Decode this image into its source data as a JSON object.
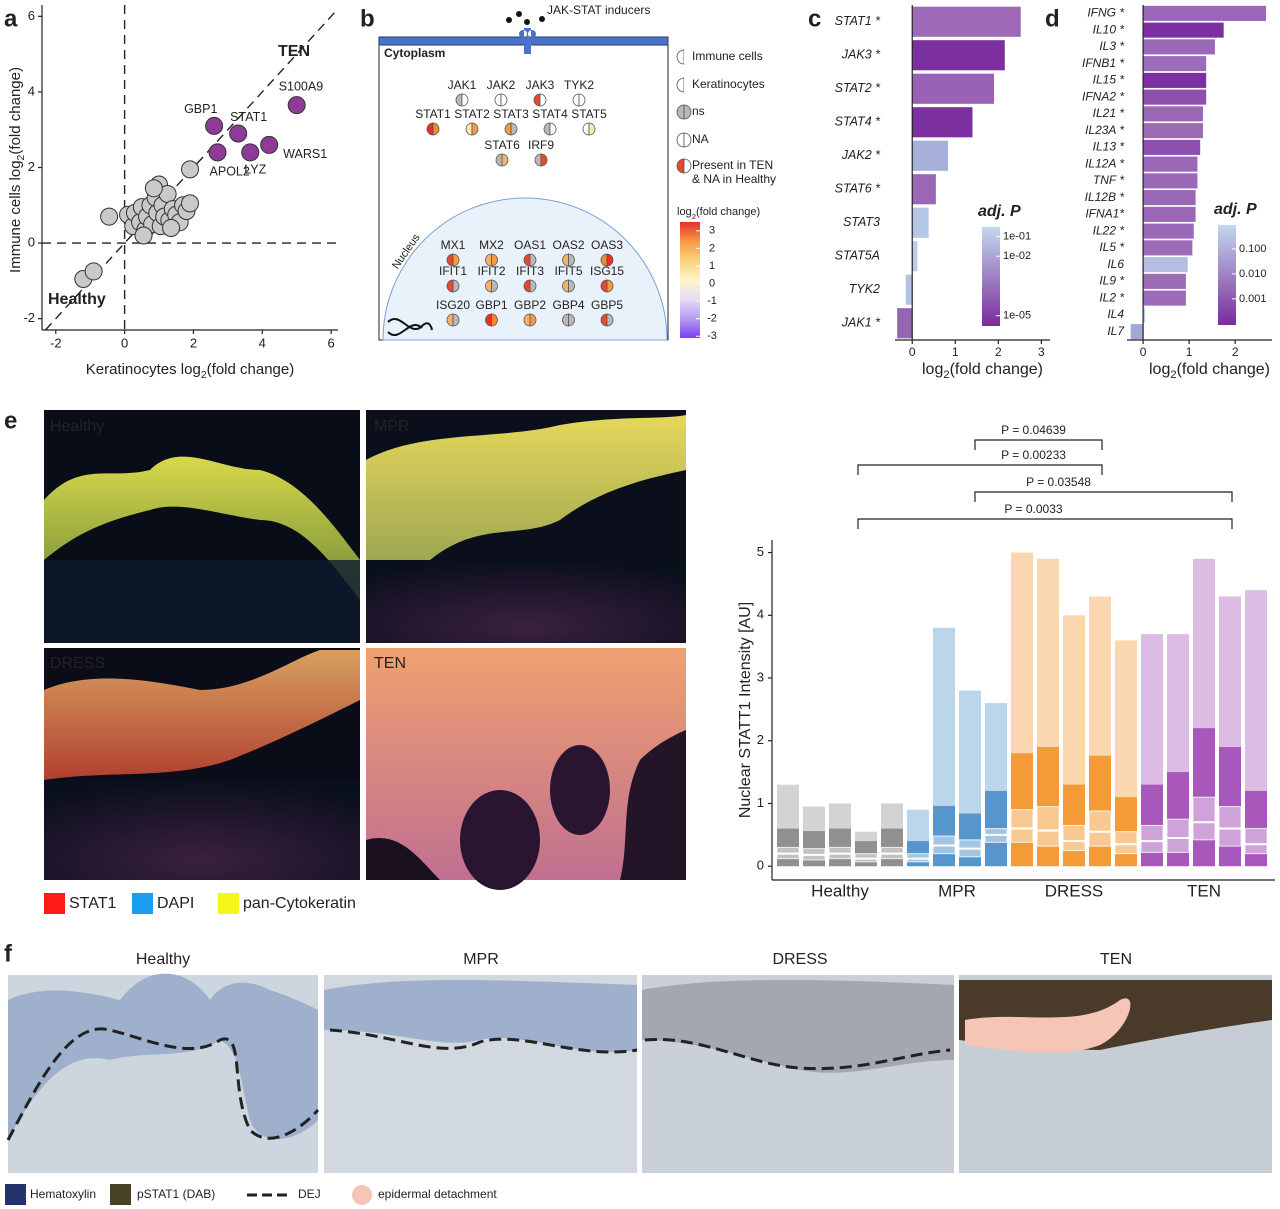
{
  "panel_letters": [
    "a",
    "b",
    "c",
    "d",
    "e",
    "f"
  ],
  "chart_data": [
    {
      "type": "scatter",
      "xlabel": [
        "Keratinocytes log",
        "2",
        "(fold change)"
      ],
      "ylabel": [
        "Immune cells log",
        "2",
        "(fold change)"
      ],
      "xlim": [
        -2.4,
        6.2
      ],
      "ylim": [
        -2.3,
        6.3
      ],
      "xticks": [
        -2,
        0,
        2,
        4,
        6
      ],
      "yticks": [
        -2,
        0,
        2,
        4,
        6
      ],
      "annotations": [
        "TEN",
        "Healthy"
      ],
      "series": [
        {
          "color": "#c9c9c9",
          "x": [
            -1.2,
            -0.9,
            -0.45,
            0.1,
            0.25,
            0.3,
            0.45,
            0.5,
            0.6,
            0.65,
            0.75,
            0.8,
            0.9,
            0.95,
            1.0,
            1.05,
            1.1,
            1.15,
            1.25,
            1.3,
            1.4,
            1.5,
            1.6,
            1.7,
            1.8,
            1.9,
            1.9,
            1.35,
            0.55,
            0.85
          ],
          "y": [
            -0.95,
            -0.75,
            0.7,
            0.75,
            0.45,
            0.8,
            0.55,
            0.95,
            0.35,
            0.7,
            1.0,
            0.5,
            1.2,
            0.8,
            1.55,
            0.45,
            1.0,
            0.7,
            1.3,
            0.6,
            0.9,
            0.75,
            0.55,
            1.0,
            0.85,
            1.05,
            1.95,
            0.4,
            0.2,
            1.45
          ]
        },
        {
          "color": "#8e3a96",
          "x": [
            2.6,
            3.3,
            2.7,
            3.65,
            4.2,
            5.0
          ],
          "y": [
            3.1,
            2.9,
            2.4,
            2.4,
            2.6,
            3.65
          ],
          "point_labels": [
            "GBP1",
            "STAT1",
            "APOL2",
            "LYZ",
            "WARS1",
            "S100A9"
          ]
        }
      ]
    },
    {
      "type": "hbar",
      "categories": [
        "STAT1 *",
        "JAK3 *",
        "STAT2 *",
        "STAT4 *",
        "JAK2 *",
        "STAT6 *",
        "STAT3",
        "STAT5A",
        "TYK2",
        "JAK1 *"
      ],
      "values": [
        2.52,
        2.15,
        1.9,
        1.4,
        0.83,
        0.55,
        0.38,
        0.12,
        -0.15,
        -0.35
      ],
      "colors": [
        "#9e6ab8",
        "#7c2f9e",
        "#9a62b6",
        "#7d31a0",
        "#a7b0d8",
        "#9a67b6",
        "#b4c7e4",
        "#b9cfe9",
        "#b3c4e2",
        "#9466b2"
      ],
      "label_colors": [
        "#222",
        "#222",
        "#222",
        "#222",
        "#222",
        "#222",
        "#222",
        "#222",
        "#222",
        "#222"
      ],
      "xlim": [
        -0.4,
        3.2
      ],
      "xticks": [
        0,
        1,
        2,
        3
      ],
      "xlabel": [
        "log",
        "2",
        "(fold change)"
      ],
      "colorbar": {
        "title": "adj. P",
        "lim": [
          3e-06,
          0.3
        ],
        "log": true,
        "colors": [
          "#7b2b9a",
          "#c2d8ef"
        ],
        "ticks": [
          {
            "value": 0.1,
            "label": "1e-01"
          },
          {
            "value": 0.01,
            "label": "1e-02"
          },
          {
            "value": 1e-05,
            "label": "1e-05"
          }
        ]
      }
    },
    {
      "type": "hbar",
      "categories": [
        "IFNG *",
        "IL10 *",
        "IL3 *",
        "IFNB1 *",
        "IL15 *",
        "IFNA2 *",
        "IL21 *",
        "IL23A *",
        "IL13 *",
        "IL12A *",
        "TNF *",
        "IL12B *",
        "IFNA1*",
        "IL22 *",
        "IL5 *",
        "IL6",
        "IL9 *",
        "IL2 *",
        "IL4",
        "IL7"
      ],
      "values": [
        2.67,
        1.75,
        1.56,
        1.37,
        1.37,
        1.37,
        1.3,
        1.3,
        1.24,
        1.18,
        1.18,
        1.14,
        1.14,
        1.1,
        1.07,
        0.97,
        0.93,
        0.93,
        0.04,
        -0.27
      ],
      "colors": [
        "#9b66b7",
        "#7d2f9f",
        "#9b68b8",
        "#9b6cb9",
        "#7d31a0",
        "#8e4fae",
        "#9a66b6",
        "#9b6bb8",
        "#8e4fae",
        "#9a66b6",
        "#9b68b8",
        "#9a66b6",
        "#9a66b6",
        "#9a69b7",
        "#9c6cb9",
        "#b3bee2",
        "#9c6cb9",
        "#9c6cb9",
        "#b8cfe9",
        "#a1a9d8"
      ],
      "label_colors": [
        "#222",
        "#222",
        "#222",
        "#222",
        "#222",
        "#222",
        "#222",
        "#222",
        "#222",
        "#222",
        "#e0302b",
        "#222",
        "#222",
        "#222",
        "#222",
        "#222",
        "#222",
        "#222",
        "#222",
        "#222"
      ],
      "xlim": [
        -0.35,
        2.8
      ],
      "xticks": [
        0,
        1,
        2
      ],
      "xlabel": [
        "log",
        "2",
        "(fold change)"
      ],
      "colorbar": {
        "title": "adj. P",
        "lim": [
          9e-05,
          0.9
        ],
        "log": true,
        "colors": [
          "#7b2b9a",
          "#c2d8ef"
        ],
        "ticks": [
          {
            "value": 0.1,
            "label": "0.100"
          },
          {
            "value": 0.01,
            "label": "0.010"
          },
          {
            "value": 0.001,
            "label": "0.001"
          }
        ]
      }
    },
    {
      "type": "box",
      "ylabel": "Nuclear STATT1 Intensity [AU]",
      "ylim": [
        -0.22,
        5.2
      ],
      "yticks": [
        0,
        1,
        2,
        3,
        4,
        5
      ],
      "comparisons": [
        "P = 0.04639",
        "P = 0.00233",
        "P = 0.03548",
        "P = 0.0033"
      ],
      "series": [
        {
          "name": "Healthy",
          "color": "#808080",
          "q1": [
            0.12,
            0.1,
            0.12,
            0.07,
            0.12
          ],
          "median": [
            0.2,
            0.18,
            0.2,
            0.12,
            0.2
          ],
          "q3": [
            0.3,
            0.28,
            0.3,
            0.2,
            0.3
          ],
          "max": [
            1.3,
            0.95,
            1.0,
            0.55,
            1.0
          ]
        },
        {
          "name": "MPR",
          "color": "#3d86c6",
          "q1": [
            0.07,
            0.2,
            0.15,
            0.38
          ],
          "median": [
            0.12,
            0.33,
            0.28,
            0.5
          ],
          "q3": [
            0.2,
            0.48,
            0.42,
            0.6
          ],
          "max": [
            0.9,
            3.8,
            2.8,
            2.6
          ]
        },
        {
          "name": "DRESS",
          "color": "#f28c1a",
          "q1": [
            0.38,
            0.32,
            0.25,
            0.32,
            0.2
          ],
          "median": [
            0.6,
            0.57,
            0.4,
            0.55,
            0.35
          ],
          "q3": [
            0.9,
            0.95,
            0.65,
            0.88,
            0.55
          ],
          "max": [
            5.0,
            4.9,
            4.0,
            4.3,
            3.6
          ]
        },
        {
          "name": "TEN",
          "color": "#9b3fb0",
          "q1": [
            0.22,
            0.22,
            0.42,
            0.32,
            0.2
          ],
          "median": [
            0.4,
            0.45,
            0.7,
            0.6,
            0.35
          ],
          "q3": [
            0.65,
            0.75,
            1.1,
            0.95,
            0.6
          ],
          "max": [
            3.7,
            3.7,
            4.9,
            4.3,
            4.4
          ]
        }
      ]
    }
  ],
  "diagram": {
    "inducers": "JAK-STAT inducers",
    "cytoplasm": "Cytoplasm",
    "nucleus": "Nucleus",
    "cytoplasm_genes": [
      [
        {
          "name": "JAK1",
          "immune": "#b8b8b8",
          "keratinocytes": "#ffffff"
        },
        {
          "name": "JAK2",
          "immune": "#ffffff",
          "keratinocytes": "#ffffff"
        },
        {
          "name": "JAK3",
          "immune": "#e8492e",
          "keratinocytes": "#ffffff"
        },
        {
          "name": "TYK2",
          "immune": "#ffffff",
          "keratinocytes": "#ffffff"
        }
      ],
      [
        {
          "name": "STAT1",
          "immune": "#e8302a",
          "keratinocytes": "#f5892f"
        },
        {
          "name": "STAT2",
          "immune": "#fbe9b0",
          "keratinocytes": "#f59a45"
        },
        {
          "name": "STAT3",
          "immune": "#f59a45",
          "keratinocytes": "#b8b8b8"
        },
        {
          "name": "STAT4",
          "immune": "#b8b8b8",
          "keratinocytes": "#ffffff"
        },
        {
          "name": "STAT5",
          "immune": "#ffffff",
          "keratinocytes": "#fbe9b0"
        }
      ],
      [
        {
          "name": "STAT6",
          "immune": "#b8b8b8",
          "keratinocytes": "#f7b26a"
        },
        {
          "name": "IRF9",
          "immune": "#b8b8b8",
          "keratinocytes": "#e8492e"
        }
      ]
    ],
    "nucleus_genes": [
      [
        {
          "name": "MX1",
          "immune": "#e8492e",
          "keratinocytes": "#f59a45"
        },
        {
          "name": "MX2",
          "immune": "#f7b26a",
          "keratinocytes": "#f59a45"
        },
        {
          "name": "OAS1",
          "immune": "#e8492e",
          "keratinocytes": "#b8b8b8"
        },
        {
          "name": "OAS2",
          "immune": "#f7b26a",
          "keratinocytes": "#b8b8b8"
        },
        {
          "name": "OAS3",
          "immune": "#f5892f",
          "keratinocytes": "#e8302a"
        }
      ],
      [
        {
          "name": "IFIT1",
          "immune": "#e8492e",
          "keratinocytes": "#b8b8b8"
        },
        {
          "name": "IFIT2",
          "immune": "#f7b26a",
          "keratinocytes": "#b8b8b8"
        },
        {
          "name": "IFIT3",
          "immune": "#e8492e",
          "keratinocytes": "#b8b8b8"
        },
        {
          "name": "IFIT5",
          "immune": "#f7b26a",
          "keratinocytes": "#b8b8b8"
        },
        {
          "name": "ISG15",
          "immune": "#e8492e",
          "keratinocytes": "#f59a45"
        }
      ],
      [
        {
          "name": "ISG20",
          "immune": "#f7b26a",
          "keratinocytes": "#b8b8b8"
        },
        {
          "name": "GBP1",
          "immune": "#e8302a",
          "keratinocytes": "#f5892f"
        },
        {
          "name": "GBP2",
          "immune": "#f7b26a",
          "keratinocytes": "#f59a45"
        },
        {
          "name": "GBP4",
          "immune": "#b8b8b8",
          "keratinocytes": "#b8b8b8"
        },
        {
          "name": "GBP5",
          "immune": "#e8492e",
          "keratinocytes": "#b8b8b8"
        }
      ]
    ],
    "legend": [
      [
        "Immune cells"
      ],
      [
        "Keratinocytes"
      ],
      [
        "ns"
      ],
      [
        "NA"
      ],
      [
        "Present in TEN",
        "& NA in Healthy"
      ]
    ],
    "colorbar": {
      "title": [
        "log",
        "2",
        "(fold change)"
      ],
      "lim": [
        -3.1,
        3.5
      ],
      "ticks": [
        3,
        2,
        1,
        0,
        -1,
        -2,
        -3
      ],
      "colors": [
        "#7b3ff2",
        "#b59cf0",
        "#e6dcf5",
        "#fdf6c8",
        "#fbd27a",
        "#f59a45",
        "#e8302a"
      ]
    }
  },
  "micrographs_e": {
    "panels": [
      "Healthy",
      "MPR",
      "DRESS",
      "TEN"
    ],
    "label_colors": [
      "#9a9a9a",
      "#4a90d0",
      "#f0892a",
      "#b060c0"
    ],
    "legend": [
      {
        "name": "STAT1",
        "color": "#ff1a1a"
      },
      {
        "name": "DAPI",
        "color": "#1a9cf0"
      },
      {
        "name": "pan-Cytokeratin",
        "color": "#f5f51a"
      }
    ]
  },
  "micrographs_f": {
    "panels": [
      "Healthy",
      "MPR",
      "DRESS",
      "TEN"
    ],
    "label_colors": [
      "#9a9a9a",
      "#4a90d0",
      "#f0892a",
      "#9b3fb0"
    ],
    "legend": [
      {
        "name": "Hematoxylin",
        "color": "#25336b"
      },
      {
        "name": "pSTAT1 (DAB)",
        "color": "#4a4226"
      },
      {
        "name": "DEJ",
        "color": "#222222"
      },
      {
        "name": "epidermal detachment",
        "color": "#f5c6b6"
      }
    ]
  }
}
